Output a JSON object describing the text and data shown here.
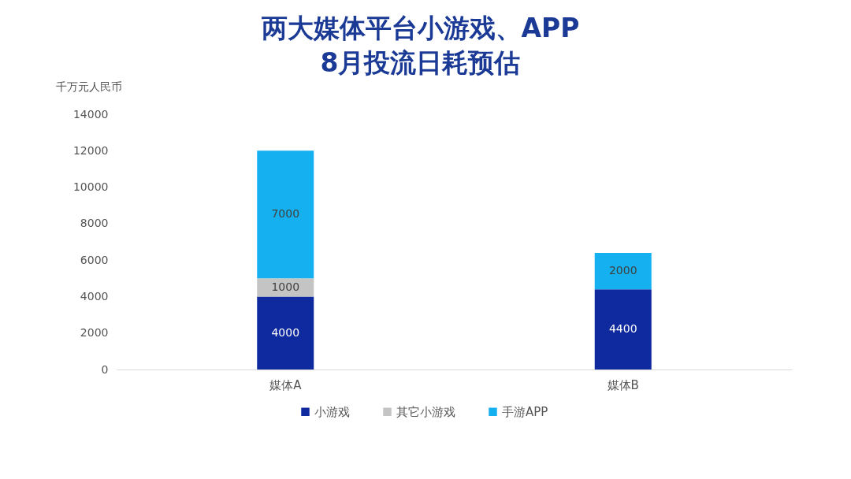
{
  "chart_data": {
    "type": "bar",
    "title": "两大媒体平台小游戏、APP\n8月投流日耗预估",
    "ylabel": "千万元人民币",
    "categories": [
      "媒体A",
      "媒体B"
    ],
    "series": [
      {
        "name": "小游戏",
        "color": "#0f2a9e",
        "values": [
          4000,
          4400
        ]
      },
      {
        "name": "其它小游戏",
        "color": "#c4c4c4",
        "values": [
          1000,
          null
        ]
      },
      {
        "name": "手游APP",
        "color": "#14b0f0",
        "values": [
          7000,
          2000
        ]
      }
    ],
    "stacked": true,
    "data_labels": true,
    "legend": "bottom",
    "ylim": [
      0,
      14000
    ],
    "yticks": [
      0,
      2000,
      4000,
      6000,
      8000,
      10000,
      12000,
      14000
    ]
  }
}
